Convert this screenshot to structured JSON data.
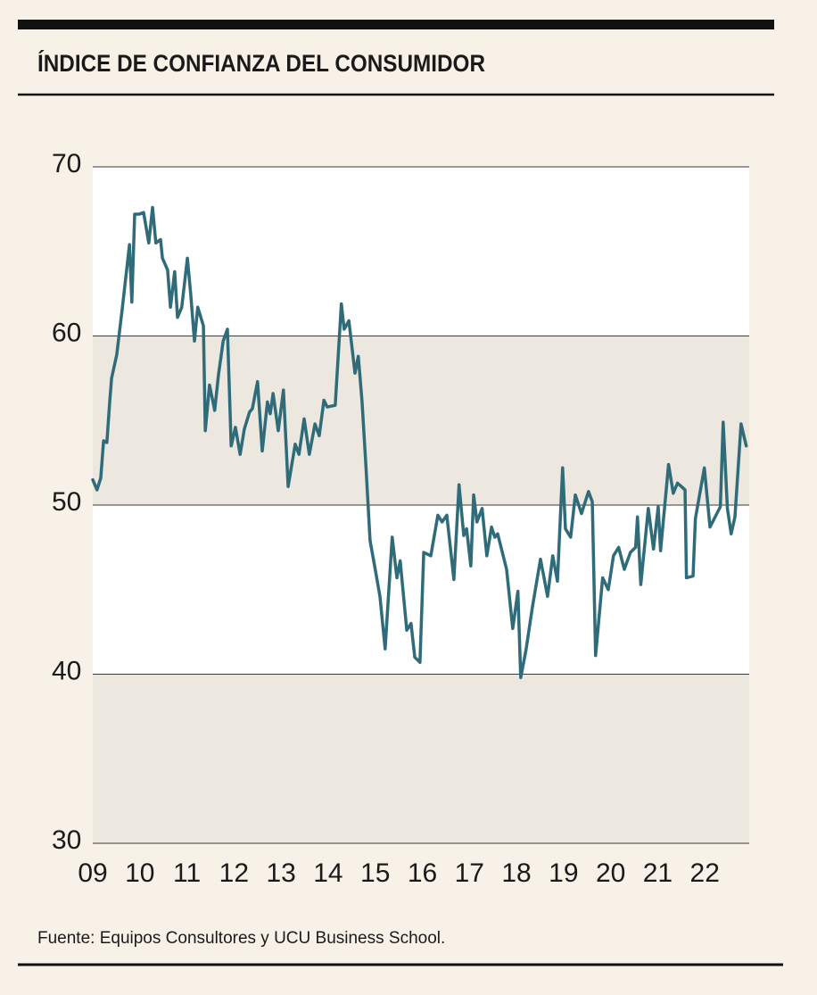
{
  "chart_data": {
    "type": "line",
    "title": "ÍNDICE DE CONFIANZA DEL CONSUMIDOR",
    "source": "Fuente: Equipos Consultores y UCU Business School.",
    "color": "#2f6b78",
    "x": [
      9.0,
      9.09,
      9.17,
      9.23,
      9.3,
      9.36,
      9.4,
      9.51,
      9.63,
      9.78,
      9.83,
      9.89,
      9.98,
      10.08,
      10.19,
      10.27,
      10.34,
      10.44,
      10.48,
      10.59,
      10.65,
      10.74,
      10.8,
      10.89,
      11.01,
      11.08,
      11.16,
      11.23,
      11.35,
      11.39,
      11.48,
      11.59,
      11.67,
      11.77,
      11.86,
      11.94,
      12.03,
      12.13,
      12.22,
      12.33,
      12.39,
      12.5,
      12.6,
      12.71,
      12.77,
      12.83,
      12.94,
      13.05,
      13.15,
      13.3,
      13.38,
      13.49,
      13.6,
      13.72,
      13.81,
      13.91,
      13.98,
      14.15,
      14.28,
      14.34,
      14.44,
      14.57,
      14.64,
      14.72,
      14.8,
      14.89,
      15.0,
      15.1,
      15.21,
      15.36,
      15.46,
      15.53,
      15.67,
      15.76,
      15.84,
      15.95,
      16.03,
      16.18,
      16.33,
      16.42,
      16.52,
      16.67,
      16.78,
      16.88,
      16.94,
      17.03,
      17.09,
      17.16,
      17.27,
      17.37,
      17.47,
      17.54,
      17.6,
      17.79,
      17.92,
      18.03,
      18.09,
      18.2,
      18.34,
      18.51,
      18.66,
      18.77,
      18.87,
      18.98,
      19.04,
      19.15,
      19.25,
      19.38,
      19.53,
      19.61,
      19.68,
      19.83,
      19.95,
      20.06,
      20.17,
      20.29,
      20.42,
      20.53,
      20.57,
      20.64,
      20.8,
      20.91,
      21.01,
      21.06,
      21.23,
      21.33,
      21.42,
      21.58,
      21.61,
      21.75,
      21.8,
      21.99,
      22.11,
      22.33,
      22.39,
      22.48,
      22.56,
      22.64,
      22.77,
      22.88
    ],
    "values": [
      51.5,
      50.9,
      51.6,
      53.8,
      53.7,
      56.1,
      57.5,
      58.9,
      61.7,
      65.4,
      62.0,
      67.2,
      67.2,
      67.3,
      65.5,
      67.6,
      65.5,
      65.7,
      64.6,
      63.9,
      61.7,
      63.8,
      61.1,
      61.7,
      64.6,
      62.5,
      59.7,
      61.7,
      60.6,
      54.4,
      57.1,
      55.6,
      57.7,
      59.7,
      60.4,
      53.5,
      54.6,
      53.0,
      54.5,
      55.5,
      55.7,
      57.3,
      53.2,
      56.1,
      55.4,
      56.6,
      54.4,
      56.8,
      51.1,
      53.6,
      53.0,
      55.1,
      53.0,
      54.8,
      54.1,
      56.2,
      55.8,
      55.9,
      61.9,
      60.4,
      60.9,
      57.8,
      58.8,
      56.1,
      52.4,
      47.9,
      46.2,
      44.6,
      41.5,
      48.1,
      45.7,
      46.7,
      42.6,
      43.0,
      41.0,
      40.7,
      47.2,
      47.0,
      49.4,
      49.0,
      49.4,
      45.6,
      51.2,
      48.2,
      48.6,
      46.4,
      50.6,
      49.0,
      49.8,
      47.0,
      48.7,
      48.1,
      48.3,
      46.2,
      42.7,
      44.9,
      39.8,
      41.4,
      44.0,
      46.8,
      44.6,
      47.0,
      45.5,
      52.2,
      48.6,
      48.1,
      50.6,
      49.5,
      50.8,
      50.2,
      41.1,
      45.7,
      45.0,
      47.0,
      47.5,
      46.2,
      47.2,
      47.5,
      49.3,
      45.3,
      49.8,
      47.4,
      49.9,
      47.3,
      52.4,
      50.7,
      51.3,
      50.9,
      45.7,
      45.8,
      49.2,
      52.2,
      48.7,
      49.9,
      54.9,
      49.8,
      48.3,
      49.3,
      54.8,
      53.5
    ],
    "xlim": [
      9,
      23
    ],
    "xticks": [
      {
        "value": 9,
        "label": "09"
      },
      10,
      11,
      12,
      13,
      14,
      15,
      16,
      17,
      18,
      19,
      20,
      21,
      22
    ],
    "ylim": [
      30,
      70
    ],
    "yticks": [
      30,
      40,
      50,
      60,
      70
    ],
    "grid": true
  }
}
